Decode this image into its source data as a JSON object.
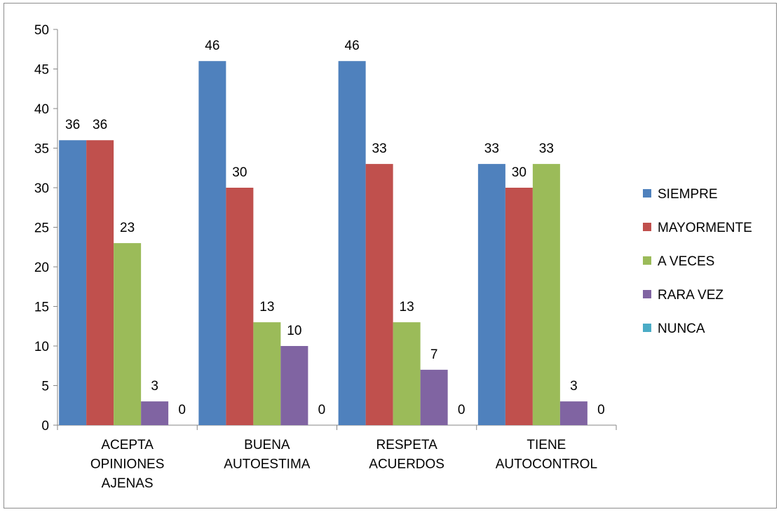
{
  "chart_data": {
    "type": "bar",
    "categories": [
      [
        "ACEPTA",
        "OPINIONES",
        "AJENAS"
      ],
      [
        "BUENA",
        "AUTOESTIMA"
      ],
      [
        "RESPETA",
        "ACUERDOS"
      ],
      [
        "TIENE",
        "AUTOCONTROL"
      ]
    ],
    "series": [
      {
        "name": "SIEMPRE",
        "color": "#4F81BD",
        "values": [
          36,
          46,
          46,
          33
        ]
      },
      {
        "name": "MAYORMENTE",
        "color": "#C0504D",
        "values": [
          36,
          30,
          33,
          30
        ]
      },
      {
        "name": "A VECES",
        "color": "#9BBB59",
        "values": [
          23,
          13,
          13,
          33
        ]
      },
      {
        "name": "RARA VEZ",
        "color": "#8064A2",
        "values": [
          3,
          10,
          7,
          3
        ]
      },
      {
        "name": "NUNCA",
        "color": "#4BACC6",
        "values": [
          0,
          0,
          0,
          0
        ]
      }
    ],
    "ylim": [
      0,
      50
    ],
    "yticks": [
      0,
      5,
      10,
      15,
      20,
      25,
      30,
      35,
      40,
      45,
      50
    ],
    "data_labels": true,
    "grid": false,
    "legend_position": "right",
    "title": "",
    "xlabel": "",
    "ylabel": ""
  }
}
